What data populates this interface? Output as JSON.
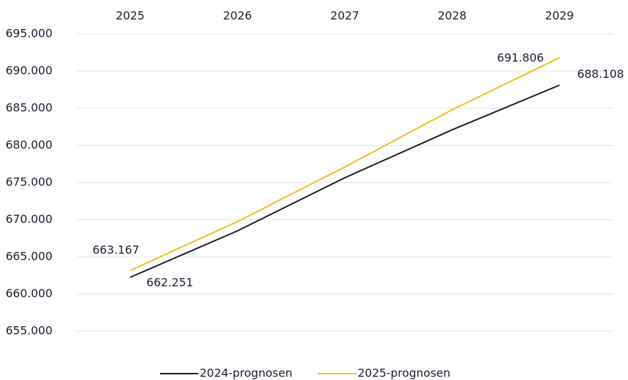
{
  "chart_data": {
    "type": "line",
    "categories": [
      "2025",
      "2026",
      "2027",
      "2028",
      "2029"
    ],
    "series": [
      {
        "name": "2024-prognosen",
        "color": "#1a1a1a",
        "values": [
          662251,
          668500,
          675650,
          682100,
          688108
        ],
        "value_labels": [
          "662.251",
          null,
          null,
          null,
          "688.108"
        ]
      },
      {
        "name": "2025-prognosen",
        "color": "#e6bf1e",
        "values": [
          663167,
          669750,
          677100,
          684800,
          691806
        ],
        "value_labels": [
          "663.167",
          null,
          null,
          null,
          "691.806"
        ]
      }
    ],
    "ylim": [
      655000,
      695000
    ],
    "yticks": [
      {
        "value": 655000,
        "label": "655.000"
      },
      {
        "value": 660000,
        "label": "660.000"
      },
      {
        "value": 665000,
        "label": "665.000"
      },
      {
        "value": 670000,
        "label": "670.000"
      },
      {
        "value": 675000,
        "label": "675.000"
      },
      {
        "value": 680000,
        "label": "680.000"
      },
      {
        "value": 685000,
        "label": "685.000"
      },
      {
        "value": 690000,
        "label": "690.000"
      },
      {
        "value": 695000,
        "label": "695.000"
      }
    ],
    "grid": true,
    "legend": "bottom"
  }
}
